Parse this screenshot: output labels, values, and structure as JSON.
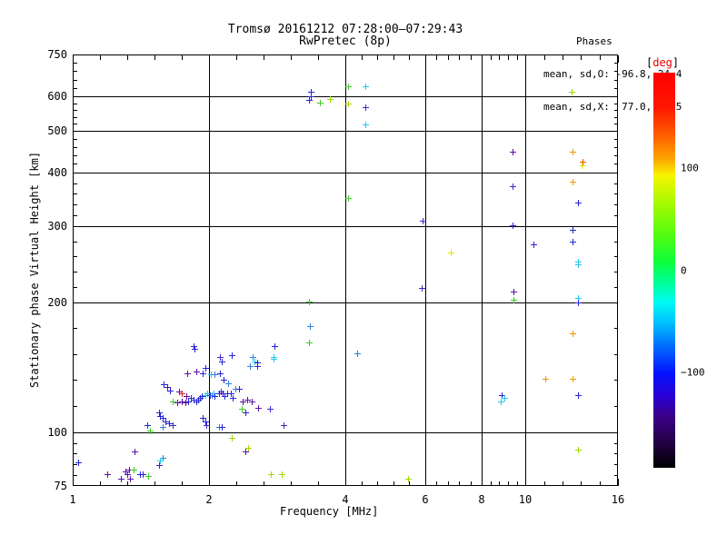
{
  "title": {
    "line1": "Tromsø 20161212 07:28:00–07:29:43",
    "line2": "RwPretec (8p)"
  },
  "stats": {
    "header": "Phases",
    "line1": "mean, sd,O: -96.8, 24.4",
    "line2": "mean, sd,X:  77.0, 26.5"
  },
  "chart_data": {
    "type": "scatter",
    "title": "Tromsø 20161212 07:28:00–07:29:43  RwPretec (8p)",
    "xlabel": "Frequency [MHz]",
    "ylabel": "Stationary phase Virtual Height [km]",
    "x_scale": "log",
    "y_scale": "log",
    "xlim": [
      1,
      16
    ],
    "ylim": [
      75,
      750
    ],
    "grid": true,
    "x_major_ticks": [
      1,
      2,
      4,
      6,
      8,
      10,
      16
    ],
    "x_tick_labels": [
      "1",
      "2",
      "4",
      "6",
      "8",
      "10",
      "16"
    ],
    "y_major_ticks": [
      75,
      100,
      200,
      300,
      400,
      500,
      600,
      750
    ],
    "y_tick_labels": [
      "75",
      "100",
      "200",
      "300",
      "400",
      "500",
      "600",
      "750"
    ],
    "x_gridlines": [
      2,
      4,
      6,
      8,
      10
    ],
    "y_gridlines": [
      100,
      200,
      300,
      400,
      500,
      600
    ],
    "colorbar": {
      "bracket_l": "[",
      "label": "deg",
      "bracket_r": "]",
      "unit": "deg",
      "value_range": [
        -194,
        194
      ],
      "ticks": [
        {
          "value": 100,
          "label": "100"
        },
        {
          "value": 0,
          "label": "0"
        },
        {
          "value": -100,
          "label": "−100"
        }
      ],
      "gradient": [
        [
          0,
          "#fe0000"
        ],
        [
          9,
          "#fe1800"
        ],
        [
          16,
          "#fe6000"
        ],
        [
          22,
          "#fca800"
        ],
        [
          26,
          "#f8f400"
        ],
        [
          33,
          "#a6fa00"
        ],
        [
          41,
          "#54fc10"
        ],
        [
          48,
          "#0cfe3c"
        ],
        [
          53,
          "#00fe96"
        ],
        [
          58,
          "#00fcf2"
        ],
        [
          63,
          "#00c4fe"
        ],
        [
          69,
          "#0070fe"
        ],
        [
          76,
          "#0412fe"
        ],
        [
          82,
          "#2a00d4"
        ],
        [
          87,
          "#3c0088"
        ],
        [
          94,
          "#200040"
        ],
        [
          100,
          "#000000"
        ]
      ]
    },
    "points": [
      [
        1.03,
        85,
        "#2424d8"
      ],
      [
        1.19,
        80,
        "#5a0fa5"
      ],
      [
        1.28,
        78,
        "#5a0fa5"
      ],
      [
        1.31,
        81,
        "#5a0fa5"
      ],
      [
        1.33,
        82,
        "#5a0fa5"
      ],
      [
        1.36,
        82,
        "#3ecc28"
      ],
      [
        1.37,
        90,
        "#5a0fa5"
      ],
      [
        1.32,
        80,
        "#5a0fa5"
      ],
      [
        1.34,
        78,
        "#5a0fa5"
      ],
      [
        1.41,
        80,
        "#2424d8"
      ],
      [
        1.43,
        80,
        "#2424d8"
      ],
      [
        1.47,
        79,
        "#3ecc28"
      ],
      [
        1.55,
        84,
        "#2424d8"
      ],
      [
        1.58,
        87,
        "#2d7fe0"
      ],
      [
        1.56,
        86,
        "#22c8ee"
      ],
      [
        1.46,
        104,
        "#2424d8"
      ],
      [
        1.48,
        101,
        "#3ecc28"
      ],
      [
        1.55,
        111,
        "#2424d8"
      ],
      [
        1.56,
        109,
        "#2424d8"
      ],
      [
        1.58,
        108,
        "#2424d8"
      ],
      [
        1.6,
        106,
        "#2424d8"
      ],
      [
        1.63,
        105,
        "#2424d8"
      ],
      [
        1.66,
        104,
        "#3b28c8"
      ],
      [
        1.58,
        103,
        "#2d7fe0"
      ],
      [
        1.94,
        108,
        "#2424d8"
      ],
      [
        1.96,
        106,
        "#2424d8"
      ],
      [
        1.97,
        104,
        "#3b28c8"
      ],
      [
        2.1,
        103,
        "#2d7fe0"
      ],
      [
        2.13,
        103,
        "#2424d8"
      ],
      [
        2.92,
        104,
        "#3b28c8"
      ],
      [
        2.24,
        97,
        "#a0d800"
      ],
      [
        2.41,
        90,
        "#5a0fa5"
      ],
      [
        2.44,
        92,
        "#a0d800"
      ],
      [
        2.74,
        80,
        "#a0d800"
      ],
      [
        2.9,
        80,
        "#a0d800"
      ],
      [
        5.5,
        78,
        "#a0d800"
      ],
      [
        1.85,
        158,
        "#2424d8"
      ],
      [
        1.86,
        156,
        "#2424d8"
      ],
      [
        1.96,
        141,
        "#2424d8"
      ],
      [
        2.11,
        149,
        "#3b28c8"
      ],
      [
        2.13,
        146,
        "#2424d8"
      ],
      [
        2.24,
        151,
        "#2424d8"
      ],
      [
        2.5,
        149,
        "#2d7fe0"
      ],
      [
        2.52,
        146,
        "#22c8ee"
      ],
      [
        2.55,
        145,
        "#2424d8"
      ],
      [
        2.46,
        142,
        "#2d7fe0"
      ],
      [
        2.56,
        142,
        "#2424d8"
      ],
      [
        2.78,
        149,
        "#22c8ee"
      ],
      [
        1.79,
        137,
        "#5a0fa5"
      ],
      [
        1.87,
        138,
        "#5a0fa5"
      ],
      [
        1.94,
        137,
        "#2424d8"
      ],
      [
        2.02,
        136,
        "#22c8ee"
      ],
      [
        2.06,
        136,
        "#2d7fe0"
      ],
      [
        2.11,
        137,
        "#2424d8"
      ],
      [
        2.15,
        132,
        "#2424d8"
      ],
      [
        2.2,
        130,
        "#2d7fe0"
      ],
      [
        1.59,
        129,
        "#2424d8"
      ],
      [
        1.62,
        127,
        "#5a0fa5"
      ],
      [
        1.64,
        125,
        "#2424d8"
      ],
      [
        1.72,
        124,
        "#5a0fa5"
      ],
      [
        1.74,
        123,
        "#dd2222"
      ],
      [
        1.78,
        121,
        "#5a0fa5"
      ],
      [
        1.82,
        120,
        "#2424d8"
      ],
      [
        1.85,
        119,
        "#2424d8"
      ],
      [
        1.87,
        118,
        "#2424d8"
      ],
      [
        1.89,
        119,
        "#2424d8"
      ],
      [
        1.91,
        120,
        "#2424d8"
      ],
      [
        1.93,
        121,
        "#2424d8"
      ],
      [
        1.96,
        122,
        "#22c8ee"
      ],
      [
        1.98,
        123,
        "#22c8ee"
      ],
      [
        2.01,
        122,
        "#2424d8"
      ],
      [
        2.03,
        122,
        "#2d7fe0"
      ],
      [
        2.05,
        123,
        "#22c8ee"
      ],
      [
        2.06,
        121,
        "#2424d8"
      ],
      [
        2.1,
        123,
        "#2424d8"
      ],
      [
        2.12,
        124,
        "#2424d8"
      ],
      [
        2.14,
        123,
        "#5a0fa5"
      ],
      [
        2.16,
        121,
        "#2424d8"
      ],
      [
        2.19,
        123,
        "#2424d8"
      ],
      [
        2.23,
        123,
        "#2424d8"
      ],
      [
        2.25,
        120,
        "#2424d8"
      ],
      [
        2.29,
        126,
        "#2d7fe0"
      ],
      [
        2.33,
        126,
        "#2424d8"
      ],
      [
        1.66,
        118,
        "#3ecc28"
      ],
      [
        1.7,
        117,
        "#5a0fa5"
      ],
      [
        1.74,
        118,
        "#5a0fa5"
      ],
      [
        1.77,
        117,
        "#5a0fa5"
      ],
      [
        1.8,
        118,
        "#2424d8"
      ],
      [
        2.37,
        118,
        "#5a0fa5"
      ],
      [
        2.43,
        119,
        "#5a0fa5"
      ],
      [
        2.48,
        118,
        "#5a0fa5"
      ],
      [
        2.36,
        113,
        "#3ecc28"
      ],
      [
        2.41,
        111,
        "#2424d8"
      ],
      [
        2.57,
        114,
        "#5a0fa5"
      ],
      [
        2.72,
        113,
        "#3b28c8"
      ],
      [
        3.35,
        616,
        "#2424d8"
      ],
      [
        3.35,
        600,
        "#2424d8"
      ],
      [
        3.33,
        588,
        "#2424d8"
      ],
      [
        3.52,
        580,
        "#3ecc28"
      ],
      [
        3.7,
        593,
        "#a0d800"
      ],
      [
        4.05,
        634,
        "#3ecc28"
      ],
      [
        4.06,
        578,
        "#a0d800"
      ],
      [
        4.42,
        633,
        "#22c8ee"
      ],
      [
        4.42,
        565,
        "#3b28c8"
      ],
      [
        4.43,
        517,
        "#22c8ee"
      ],
      [
        3.33,
        201,
        "#3ecc28"
      ],
      [
        3.34,
        176,
        "#2d7fe0"
      ],
      [
        3.33,
        161,
        "#3ecc28"
      ],
      [
        2.79,
        158,
        "#2424d8"
      ],
      [
        2.78,
        148,
        "#22c8ee"
      ],
      [
        4.25,
        152,
        "#2d7fe0"
      ],
      [
        4.05,
        348,
        "#3ecc28"
      ],
      [
        5.92,
        309,
        "#3b28c8"
      ],
      [
        5.89,
        216,
        "#3b28c8"
      ],
      [
        6.84,
        261,
        "#e6e600"
      ],
      [
        9.38,
        447,
        "#5a0fa5"
      ],
      [
        9.38,
        372,
        "#3b28c8"
      ],
      [
        9.38,
        302,
        "#3b28c8"
      ],
      [
        9.41,
        212,
        "#5a0fa5"
      ],
      [
        9.41,
        203,
        "#3ecc28"
      ],
      [
        8.87,
        122,
        "#2424d8"
      ],
      [
        8.98,
        120,
        "#22c8ee"
      ],
      [
        8.82,
        118,
        "#22c8ee"
      ],
      [
        10.41,
        272,
        "#3b28c8"
      ],
      [
        11.06,
        133,
        "#f29500"
      ],
      [
        12.66,
        615,
        "#a0d800"
      ],
      [
        12.71,
        447,
        "#f29500"
      ],
      [
        13.34,
        424,
        "#ee5500"
      ],
      [
        13.3,
        416,
        "#e6e600"
      ],
      [
        12.71,
        380,
        "#f29500"
      ],
      [
        13.06,
        341,
        "#2424d8"
      ],
      [
        12.71,
        294,
        "#2424d8"
      ],
      [
        12.71,
        277,
        "#2424d8"
      ],
      [
        13.06,
        249,
        "#22c8ee"
      ],
      [
        13.06,
        245,
        "#22c8ee"
      ],
      [
        13.06,
        205,
        "#22c8ee"
      ],
      [
        13.06,
        200,
        "#2424d8"
      ],
      [
        12.71,
        169,
        "#f29500"
      ],
      [
        12.71,
        133,
        "#f29500"
      ],
      [
        13.06,
        122,
        "#2424d8"
      ],
      [
        13.04,
        91,
        "#a0d800"
      ]
    ]
  }
}
